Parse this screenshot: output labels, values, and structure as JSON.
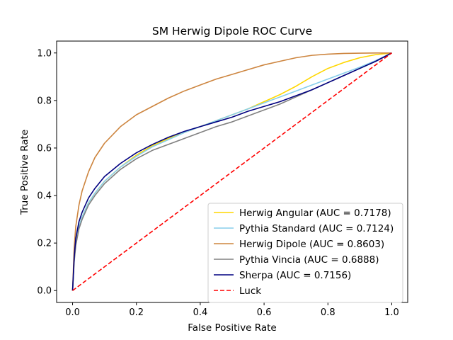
{
  "chart_data": {
    "type": "line",
    "title": "SM Herwig Dipole ROC Curve",
    "xlabel": "False Positive Rate",
    "ylabel": "True Positive Rate",
    "xlim": [
      -0.05,
      1.05
    ],
    "ylim": [
      -0.05,
      1.05
    ],
    "xticks": [
      "0.0",
      "0.2",
      "0.4",
      "0.6",
      "0.8",
      "1.0"
    ],
    "yticks": [
      "0.0",
      "0.2",
      "0.4",
      "0.6",
      "0.8",
      "1.0"
    ],
    "grid": false,
    "legend_position": "lower-right",
    "series": [
      {
        "name": "Herwig Angular (AUC = 0.7178)",
        "color": "#ffd700",
        "style": "solid",
        "x": [
          0,
          0.005,
          0.01,
          0.02,
          0.03,
          0.05,
          0.07,
          0.1,
          0.15,
          0.2,
          0.25,
          0.3,
          0.35,
          0.4,
          0.45,
          0.5,
          0.55,
          0.6,
          0.65,
          0.7,
          0.75,
          0.8,
          0.85,
          0.9,
          0.95,
          1.0
        ],
        "y": [
          0,
          0.13,
          0.2,
          0.27,
          0.31,
          0.37,
          0.41,
          0.46,
          0.52,
          0.57,
          0.61,
          0.64,
          0.665,
          0.69,
          0.715,
          0.74,
          0.765,
          0.795,
          0.825,
          0.86,
          0.9,
          0.935,
          0.96,
          0.98,
          0.993,
          1.0
        ]
      },
      {
        "name": "Pythia Standard (AUC = 0.7124)",
        "color": "#87ceeb",
        "style": "solid",
        "x": [
          0,
          0.005,
          0.01,
          0.02,
          0.03,
          0.05,
          0.07,
          0.1,
          0.15,
          0.2,
          0.25,
          0.3,
          0.35,
          0.4,
          0.45,
          0.5,
          0.55,
          0.6,
          0.65,
          0.7,
          0.75,
          0.8,
          0.85,
          0.9,
          0.95,
          1.0
        ],
        "y": [
          0,
          0.13,
          0.2,
          0.27,
          0.31,
          0.37,
          0.41,
          0.46,
          0.52,
          0.565,
          0.605,
          0.635,
          0.665,
          0.69,
          0.715,
          0.74,
          0.765,
          0.79,
          0.815,
          0.84,
          0.865,
          0.89,
          0.915,
          0.94,
          0.968,
          1.0
        ]
      },
      {
        "name": "Herwig Dipole (AUC = 0.8603)",
        "color": "#cd853f",
        "style": "solid",
        "x": [
          0,
          0.005,
          0.01,
          0.02,
          0.03,
          0.05,
          0.07,
          0.1,
          0.15,
          0.2,
          0.25,
          0.3,
          0.35,
          0.4,
          0.45,
          0.5,
          0.55,
          0.6,
          0.65,
          0.7,
          0.75,
          0.8,
          0.85,
          0.9,
          0.95,
          1.0
        ],
        "y": [
          0,
          0.18,
          0.27,
          0.36,
          0.42,
          0.5,
          0.56,
          0.62,
          0.69,
          0.74,
          0.775,
          0.81,
          0.84,
          0.865,
          0.89,
          0.91,
          0.93,
          0.95,
          0.965,
          0.98,
          0.99,
          0.995,
          0.998,
          0.999,
          1.0,
          1.0
        ]
      },
      {
        "name": "Pythia Vincia (AUC = 0.6888)",
        "color": "#808080",
        "style": "solid",
        "x": [
          0,
          0.005,
          0.01,
          0.02,
          0.03,
          0.05,
          0.07,
          0.1,
          0.15,
          0.2,
          0.25,
          0.3,
          0.35,
          0.4,
          0.45,
          0.5,
          0.55,
          0.6,
          0.65,
          0.7,
          0.75,
          0.8,
          0.85,
          0.9,
          0.95,
          1.0
        ],
        "y": [
          0,
          0.12,
          0.19,
          0.26,
          0.3,
          0.36,
          0.4,
          0.45,
          0.51,
          0.555,
          0.59,
          0.615,
          0.64,
          0.665,
          0.69,
          0.71,
          0.735,
          0.76,
          0.785,
          0.815,
          0.845,
          0.875,
          0.905,
          0.935,
          0.965,
          1.0
        ]
      },
      {
        "name": "Sherpa (AUC = 0.7156)",
        "color": "#000080",
        "style": "solid",
        "x": [
          0,
          0.005,
          0.01,
          0.02,
          0.03,
          0.05,
          0.07,
          0.1,
          0.15,
          0.2,
          0.25,
          0.3,
          0.35,
          0.4,
          0.45,
          0.5,
          0.55,
          0.6,
          0.65,
          0.7,
          0.75,
          0.8,
          0.85,
          0.9,
          0.95,
          1.0
        ],
        "y": [
          0,
          0.14,
          0.22,
          0.29,
          0.33,
          0.39,
          0.43,
          0.48,
          0.535,
          0.58,
          0.615,
          0.645,
          0.67,
          0.69,
          0.71,
          0.73,
          0.755,
          0.775,
          0.795,
          0.82,
          0.845,
          0.875,
          0.905,
          0.935,
          0.965,
          1.0
        ]
      },
      {
        "name": "Luck",
        "color": "#ff0000",
        "style": "dashed",
        "x": [
          0,
          1
        ],
        "y": [
          0,
          1
        ]
      }
    ]
  }
}
